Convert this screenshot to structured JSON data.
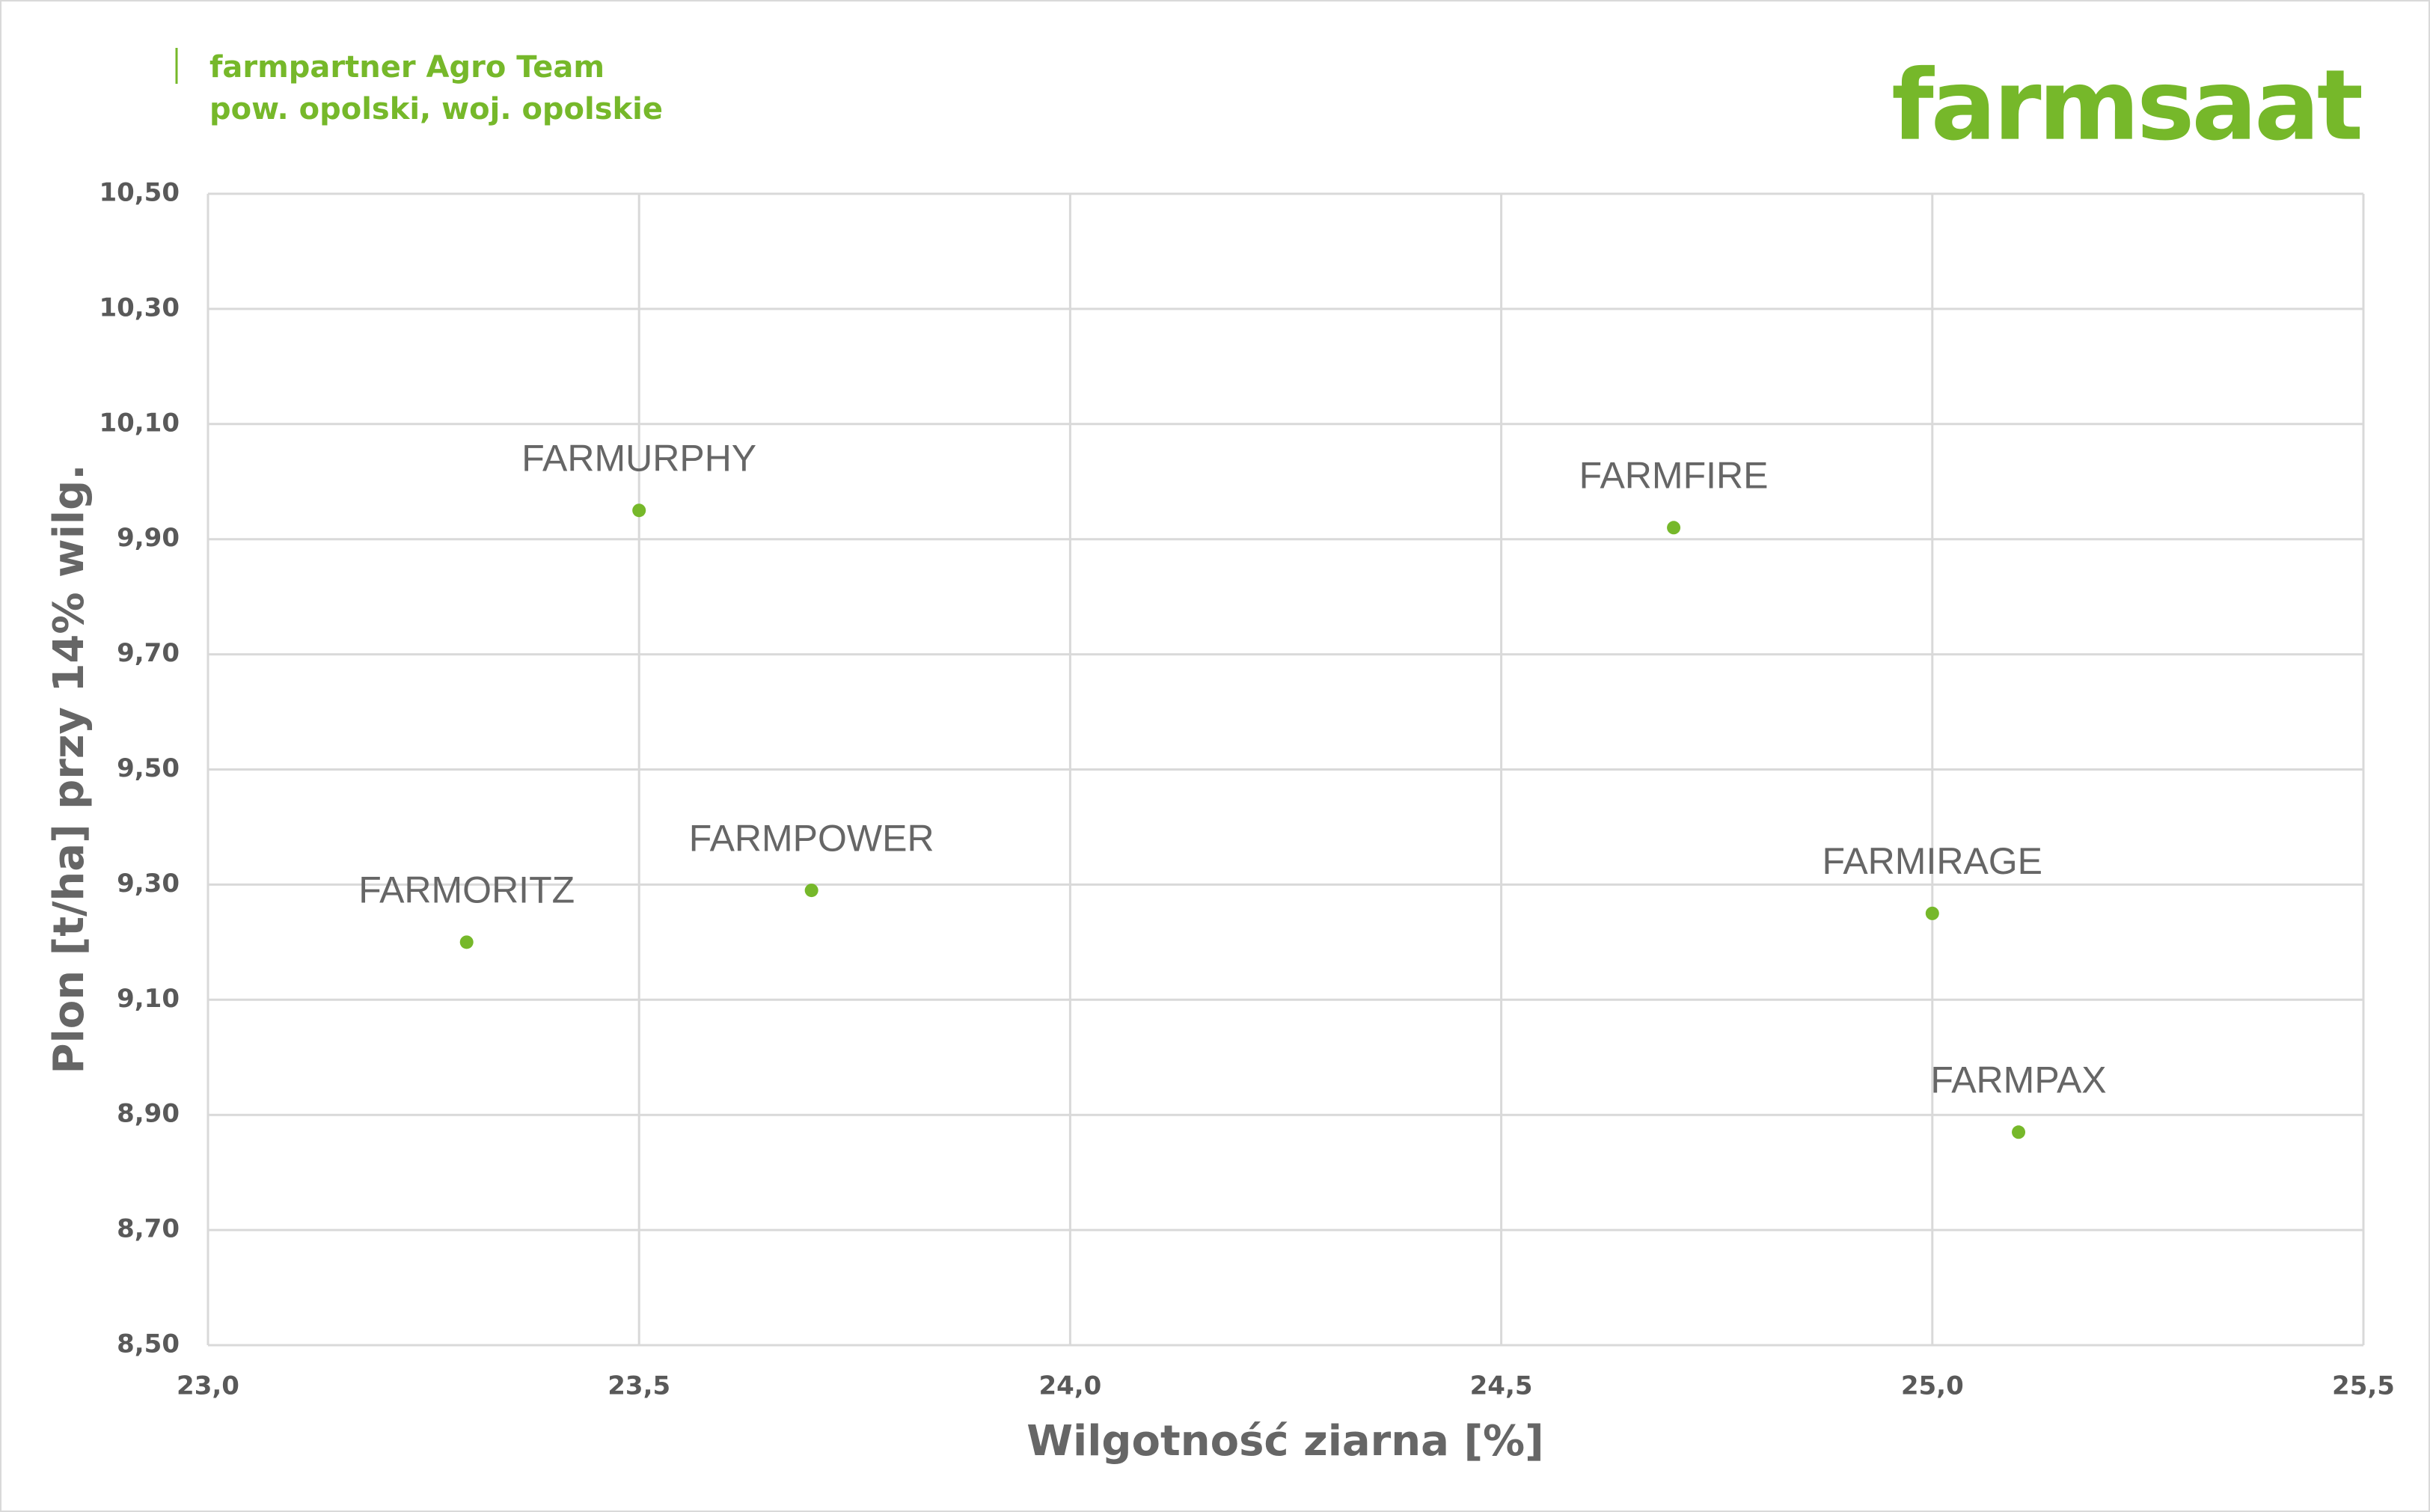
{
  "header": {
    "line1": "farmpartner Agro Team",
    "line2": "pow. opolski, woj. opolskie",
    "logo": "farmsaat"
  },
  "chart_data": {
    "type": "scatter",
    "xlabel": "Wilgotność ziarna [%]",
    "ylabel": "Plon [t/ha] przy 14% wilg.",
    "color": "#76b82a",
    "grid": true,
    "x": [
      23.5,
      24.7,
      23.7,
      23.3,
      25.0,
      25.1
    ],
    "values": [
      9.95,
      9.92,
      9.29,
      9.2,
      9.25,
      8.87
    ],
    "point_labels": [
      "FARMURPHY",
      "FARMFIRE",
      "FARMPOWER",
      "FARMORITZ",
      "FARMIRAGE",
      "FARMPAX"
    ],
    "xlim": [
      23.0,
      25.5
    ],
    "xticks": [
      {
        "value": 23.0,
        "label": "23,0"
      },
      {
        "value": 23.5,
        "label": "23,5"
      },
      {
        "value": 24.0,
        "label": "24,0"
      },
      {
        "value": 24.5,
        "label": "24,5"
      },
      {
        "value": 25.0,
        "label": "25,0"
      },
      {
        "value": 25.5,
        "label": "25,5"
      }
    ],
    "ylim": [
      8.5,
      10.5
    ],
    "yticks": [
      {
        "value": 8.5,
        "label": "8,50"
      },
      {
        "value": 8.7,
        "label": "8,70"
      },
      {
        "value": 8.9,
        "label": "8,90"
      },
      {
        "value": 9.1,
        "label": "9,10"
      },
      {
        "value": 9.3,
        "label": "9,30"
      },
      {
        "value": 9.5,
        "label": "9,50"
      },
      {
        "value": 9.7,
        "label": "9,70"
      },
      {
        "value": 9.9,
        "label": "9,90"
      },
      {
        "value": 10.1,
        "label": "10,10"
      },
      {
        "value": 10.3,
        "label": "10,30"
      },
      {
        "value": 10.5,
        "label": "10,50"
      }
    ]
  }
}
